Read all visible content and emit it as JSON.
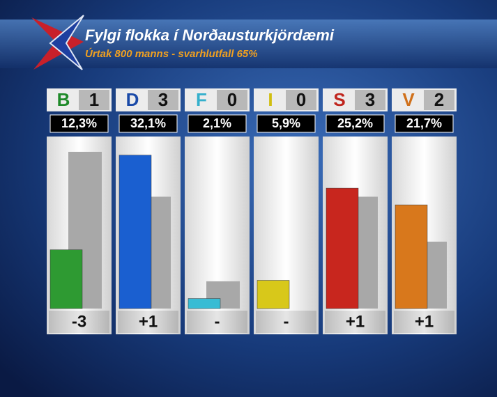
{
  "chart_data": {
    "type": "bar",
    "title": "Fylgi flokka í Norðausturkjördæmi",
    "subtitle": "Úrtak 800 manns - svarhlutfall 65%",
    "categories": [
      "B",
      "D",
      "F",
      "I",
      "S",
      "V"
    ],
    "category_colors": [
      "#1f8a2a",
      "#1a4aa8",
      "#35b0cc",
      "#d0be10",
      "#c0261e",
      "#d0701a"
    ],
    "seats": [
      1,
      3,
      0,
      0,
      3,
      2
    ],
    "seat_changes": [
      "-3",
      "+1",
      "-",
      "-",
      "+1",
      "+1"
    ],
    "series": [
      {
        "colors": [
          "#2e9a32",
          "#1a5fd0",
          "#38bcd4",
          "#d8c81a",
          "#c8261e",
          "#d8781c"
        ],
        "values": [
          12.3,
          32.1,
          2.1,
          5.9,
          25.2,
          21.7
        ],
        "value_labels": [
          "12,3%",
          "32,1%",
          "2,1%",
          "5,9%",
          "25,2%",
          "21,7%"
        ]
      },
      {
        "color": "#a8a8a8",
        "values": [
          32.8,
          23.4,
          5.7,
          null,
          23.4,
          14.0
        ]
      }
    ],
    "ylim": [
      0,
      36
    ]
  }
}
